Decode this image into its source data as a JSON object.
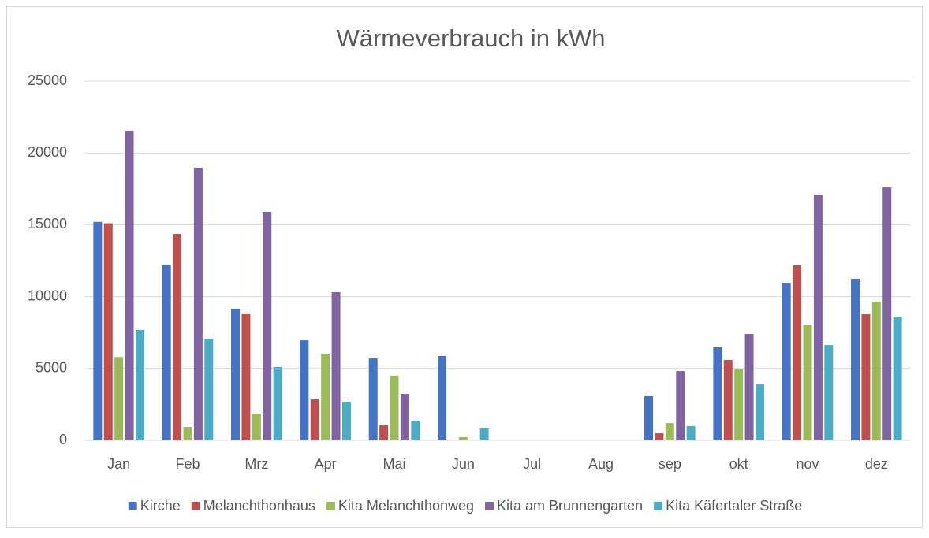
{
  "chart_data": {
    "type": "bar",
    "title": "Wärmeverbrauch in kWh",
    "categories": [
      "Jan",
      "Feb",
      "Mrz",
      "Apr",
      "Mai",
      "Jun",
      "Jul",
      "Aug",
      "sep",
      "okt",
      "nov",
      "dez"
    ],
    "series": [
      {
        "name": "Kirche",
        "color": "#4472c4",
        "values": [
          15200,
          12230,
          9160,
          6960,
          5700,
          5870,
          0,
          0,
          3070,
          6470,
          10960,
          11240
        ]
      },
      {
        "name": "Melanchthonhaus",
        "color": "#c0504d",
        "values": [
          15100,
          14360,
          8830,
          2850,
          1040,
          0,
          0,
          0,
          490,
          5590,
          12170,
          8770
        ]
      },
      {
        "name": "Kita Melanchthonweg",
        "color": "#9bbb59",
        "values": [
          5800,
          930,
          1860,
          6030,
          4500,
          220,
          0,
          0,
          1200,
          4930,
          8060,
          9650
        ]
      },
      {
        "name": "Kita am Brunnengarten",
        "color": "#8064a2",
        "values": [
          21550,
          18970,
          15900,
          10310,
          3230,
          0,
          0,
          0,
          4820,
          7400,
          17050,
          17600
        ]
      },
      {
        "name": "Kita Käfertaler Straße",
        "color": "#4bacc6",
        "values": [
          7680,
          7070,
          5100,
          2690,
          1370,
          880,
          0,
          0,
          990,
          3890,
          6630,
          8610
        ]
      }
    ],
    "ylim": [
      0,
      25000
    ],
    "yticks": [
      0,
      5000,
      10000,
      15000,
      20000,
      25000
    ],
    "grid": true,
    "legend": "bottom"
  }
}
